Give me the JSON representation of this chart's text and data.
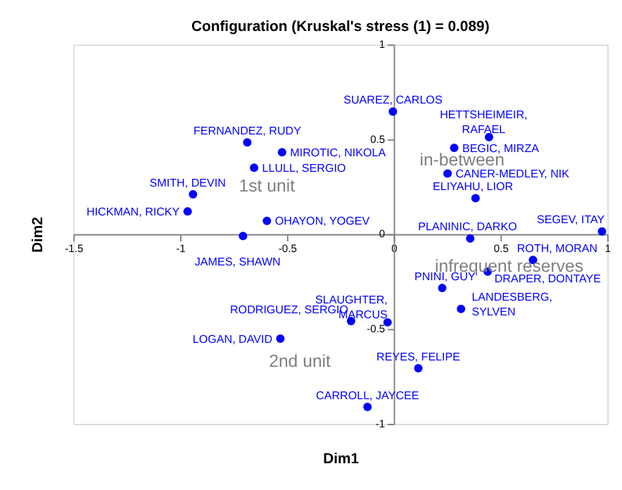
{
  "chart_data": {
    "type": "scatter",
    "title": "Configuration (Kruskal's stress (1) = 0.089)",
    "xlabel": "Dim1",
    "ylabel": "Dim2",
    "xlim": [
      -1.5,
      1
    ],
    "ylim": [
      -1,
      1
    ],
    "xticks": [
      -1.5,
      -1,
      -0.5,
      0,
      0.5,
      1
    ],
    "yticks": [
      -1,
      -0.5,
      0,
      0.5,
      1
    ],
    "grid": false,
    "marker": "circle",
    "x": [
      -0.686,
      -0.523,
      -0.654,
      -0.94,
      -0.965,
      -0.594,
      -0.706,
      -0.004,
      0.446,
      0.283,
      0.252,
      0.383,
      0.975,
      0.358,
      0.652,
      0.44,
      0.227,
      0.315,
      -0.029,
      -0.2,
      0.115,
      -0.123,
      -0.531
    ],
    "series": [
      {
        "color": "#0000ff",
        "values": [
          0.484,
          0.432,
          0.35,
          0.21,
          0.12,
          0.07,
          -0.01,
          0.646,
          0.512,
          0.455,
          0.32,
          0.19,
          0.014,
          -0.023,
          -0.136,
          -0.197,
          -0.284,
          -0.394,
          -0.465,
          -0.458,
          -0.707,
          -0.911,
          -0.551
        ],
        "value_labels": [
          "FERNANDEZ, RUDY",
          "MIROTIC, NIKOLA",
          "LLULL, SERGIO",
          "SMITH, DEVIN",
          "HICKMAN, RICKY",
          "OHAYON, YOGEV",
          "JAMES, SHAWN",
          "SUAREZ, CARLOS",
          "HETTSHEIMEIR, RAFAEL",
          "BEGIC, MIRZA",
          "CANER-MEDLEY, NIK",
          "ELIYAHU, LIOR",
          "SEGEV, ITAY",
          "PLANINIC, DARKO",
          "ROTH, MORAN",
          "DRAPER, DONTAYE",
          "PNINI, GUY",
          "LANDESBERG, SYLVEN",
          "SLAUGHTER, MARCUS",
          "RODRIGUEZ, SERGIO",
          "REYES, FELIPE",
          "CARROLL, JAYCEE",
          "LOGAN, DAVID"
        ]
      }
    ],
    "annotations": [
      "1st unit",
      "in-between",
      "infrequent reserves",
      "2nd unit"
    ]
  }
}
